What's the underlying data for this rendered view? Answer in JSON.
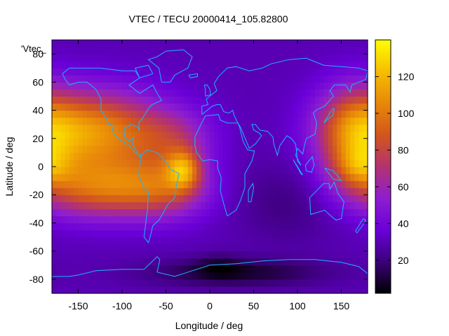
{
  "chart_data": {
    "type": "heatmap",
    "title": "VTEC / TECU 20000414_105.82800",
    "xlabel": "Longitude / deg",
    "ylabel": "Latitude / deg",
    "key_label": "'Vtec_",
    "xlim": [
      -180,
      180
    ],
    "ylim": [
      -90,
      90
    ],
    "x_ticks": [
      -150,
      -100,
      -50,
      0,
      50,
      100,
      150
    ],
    "y_ticks": [
      -80,
      -60,
      -40,
      -20,
      0,
      20,
      40,
      60,
      80
    ],
    "colorbar": {
      "range": [
        2,
        140
      ],
      "ticks": [
        20,
        40,
        60,
        80,
        100,
        120
      ],
      "palette": [
        "#000000",
        "#3c007a",
        "#6a00d8",
        "#8e1ed0",
        "#b43270",
        "#d2561c",
        "#e8880a",
        "#f6be00",
        "#ffff00"
      ]
    },
    "grid": false,
    "blobs": [
      {
        "lon": -130,
        "lat": 25,
        "sig_lon": 55,
        "sig_lat": 20,
        "value": 75
      },
      {
        "lon": -125,
        "lat": -15,
        "sig_lon": 55,
        "sig_lat": 15,
        "value": 60
      },
      {
        "lon": -50,
        "lat": -15,
        "sig_lon": 35,
        "sig_lat": 15,
        "value": 35
      },
      {
        "lon": -30,
        "lat": -2,
        "sig_lon": 14,
        "sig_lat": 10,
        "value": 55
      },
      {
        "lon": -40,
        "lat": 20,
        "sig_lon": 30,
        "sig_lat": 14,
        "value": 25
      },
      {
        "lon": 165,
        "lat": 25,
        "sig_lon": 30,
        "sig_lat": 22,
        "value": 55
      },
      {
        "lon": 170,
        "lat": 0,
        "sig_lon": 20,
        "sig_lat": 10,
        "value": 30
      },
      {
        "lon": 30,
        "lat": -75,
        "sig_lon": 70,
        "sig_lat": 7,
        "value": -22
      },
      {
        "lon": 10,
        "lat": -70,
        "sig_lon": 18,
        "sig_lat": 6,
        "value": -10
      },
      {
        "lon": 90,
        "lat": -25,
        "sig_lon": 40,
        "sig_lat": 20,
        "value": -10
      }
    ],
    "base_value": 30
  },
  "coastlines": [
    {
      "name": "north-america",
      "coords": [
        [
          -168,
          66
        ],
        [
          -160,
          70
        ],
        [
          -140,
          70
        ],
        [
          -125,
          70
        ],
        [
          -100,
          68
        ],
        [
          -85,
          68
        ],
        [
          -80,
          63
        ],
        [
          -92,
          58
        ],
        [
          -80,
          52
        ],
        [
          -65,
          58
        ],
        [
          -60,
          52
        ],
        [
          -55,
          47
        ],
        [
          -66,
          44
        ],
        [
          -70,
          41
        ],
        [
          -76,
          35
        ],
        [
          -81,
          31
        ],
        [
          -80,
          25
        ],
        [
          -82,
          28
        ],
        [
          -90,
          30
        ],
        [
          -97,
          27
        ],
        [
          -97,
          21
        ],
        [
          -92,
          18
        ],
        [
          -87,
          21
        ],
        [
          -88,
          16
        ],
        [
          -83,
          10
        ],
        [
          -78,
          8
        ],
        [
          -80,
          7
        ],
        [
          -85,
          10
        ],
        [
          -92,
          15
        ],
        [
          -105,
          20
        ],
        [
          -110,
          24
        ],
        [
          -112,
          30
        ],
        [
          -115,
          30
        ],
        [
          -118,
          34
        ],
        [
          -124,
          40
        ],
        [
          -124,
          48
        ],
        [
          -130,
          55
        ],
        [
          -140,
          60
        ],
        [
          -150,
          60
        ],
        [
          -160,
          58
        ],
        [
          -165,
          62
        ],
        [
          -168,
          66
        ]
      ]
    },
    {
      "name": "south-america",
      "coords": [
        [
          -78,
          8
        ],
        [
          -72,
          12
        ],
        [
          -60,
          10
        ],
        [
          -52,
          5
        ],
        [
          -45,
          -2
        ],
        [
          -35,
          -5
        ],
        [
          -38,
          -13
        ],
        [
          -40,
          -22
        ],
        [
          -48,
          -27
        ],
        [
          -55,
          -35
        ],
        [
          -58,
          -38
        ],
        [
          -65,
          -42
        ],
        [
          -68,
          -50
        ],
        [
          -70,
          -54
        ],
        [
          -75,
          -50
        ],
        [
          -73,
          -40
        ],
        [
          -71,
          -30
        ],
        [
          -70,
          -18
        ],
        [
          -76,
          -14
        ],
        [
          -81,
          -6
        ],
        [
          -80,
          0
        ],
        [
          -78,
          8
        ]
      ]
    },
    {
      "name": "greenland",
      "coords": [
        [
          -55,
          60
        ],
        [
          -45,
          60
        ],
        [
          -40,
          65
        ],
        [
          -25,
          70
        ],
        [
          -20,
          78
        ],
        [
          -30,
          83
        ],
        [
          -50,
          82
        ],
        [
          -60,
          78
        ],
        [
          -70,
          76
        ],
        [
          -58,
          70
        ],
        [
          -55,
          60
        ]
      ]
    },
    {
      "name": "africa",
      "coords": [
        [
          -17,
          21
        ],
        [
          -10,
          30
        ],
        [
          -5,
          36
        ],
        [
          10,
          37
        ],
        [
          12,
          33
        ],
        [
          20,
          31
        ],
        [
          32,
          31
        ],
        [
          34,
          28
        ],
        [
          38,
          18
        ],
        [
          43,
          12
        ],
        [
          51,
          11
        ],
        [
          48,
          4
        ],
        [
          40,
          -5
        ],
        [
          40,
          -15
        ],
        [
          35,
          -24
        ],
        [
          30,
          -31
        ],
        [
          20,
          -35
        ],
        [
          17,
          -29
        ],
        [
          12,
          -17
        ],
        [
          13,
          -8
        ],
        [
          9,
          -1
        ],
        [
          9,
          4
        ],
        [
          0,
          5
        ],
        [
          -8,
          4
        ],
        [
          -15,
          10
        ],
        [
          -17,
          15
        ],
        [
          -17,
          21
        ]
      ]
    },
    {
      "name": "eurasia",
      "coords": [
        [
          -9,
          37
        ],
        [
          -9,
          43
        ],
        [
          -2,
          44
        ],
        [
          -4,
          48
        ],
        [
          2,
          51
        ],
        [
          8,
          54
        ],
        [
          5,
          59
        ],
        [
          10,
          64
        ],
        [
          20,
          70
        ],
        [
          30,
          71
        ],
        [
          45,
          68
        ],
        [
          60,
          70
        ],
        [
          70,
          73
        ],
        [
          90,
          76
        ],
        [
          110,
          77
        ],
        [
          130,
          72
        ],
        [
          150,
          71
        ],
        [
          170,
          70
        ],
        [
          180,
          68
        ],
        [
          178,
          62
        ],
        [
          162,
          58
        ],
        [
          160,
          53
        ],
        [
          155,
          58
        ],
        [
          142,
          58
        ],
        [
          137,
          54
        ],
        [
          141,
          50
        ],
        [
          131,
          43
        ],
        [
          121,
          40
        ],
        [
          118,
          38
        ],
        [
          122,
          31
        ],
        [
          120,
          23
        ],
        [
          110,
          20
        ],
        [
          108,
          15
        ],
        [
          106,
          9
        ],
        [
          100,
          13
        ],
        [
          98,
          8
        ],
        [
          104,
          1
        ],
        [
          100,
          4
        ],
        [
          98,
          16
        ],
        [
          93,
          20
        ],
        [
          88,
          22
        ],
        [
          80,
          15
        ],
        [
          77,
          8
        ],
        [
          73,
          16
        ],
        [
          72,
          21
        ],
        [
          66,
          25
        ],
        [
          57,
          26
        ],
        [
          52,
          30
        ],
        [
          48,
          30
        ],
        [
          50,
          26
        ],
        [
          56,
          24
        ],
        [
          59,
          22
        ],
        [
          52,
          16
        ],
        [
          45,
          13
        ],
        [
          43,
          16
        ],
        [
          35,
          28
        ],
        [
          32,
          31
        ],
        [
          28,
          36
        ],
        [
          26,
          40
        ],
        [
          22,
          38
        ],
        [
          16,
          39
        ],
        [
          12,
          44
        ],
        [
          8,
          44
        ],
        [
          3,
          43
        ],
        [
          -9,
          37
        ]
      ]
    },
    {
      "name": "australia",
      "coords": [
        [
          114,
          -22
        ],
        [
          122,
          -17
        ],
        [
          130,
          -12
        ],
        [
          136,
          -12
        ],
        [
          137,
          -16
        ],
        [
          142,
          -11
        ],
        [
          146,
          -19
        ],
        [
          153,
          -25
        ],
        [
          150,
          -37
        ],
        [
          144,
          -38
        ],
        [
          138,
          -35
        ],
        [
          131,
          -31
        ],
        [
          115,
          -34
        ],
        [
          114,
          -22
        ]
      ]
    },
    {
      "name": "antarctica",
      "coords": [
        [
          -180,
          -84
        ],
        [
          -180,
          -78
        ],
        [
          -160,
          -78
        ],
        [
          -150,
          -77
        ],
        [
          -130,
          -74
        ],
        [
          -100,
          -73
        ],
        [
          -75,
          -73
        ],
        [
          -60,
          -64
        ],
        [
          -57,
          -66
        ],
        [
          -60,
          -75
        ],
        [
          -40,
          -78
        ],
        [
          -20,
          -74
        ],
        [
          0,
          -70
        ],
        [
          30,
          -69
        ],
        [
          60,
          -67
        ],
        [
          90,
          -66
        ],
        [
          120,
          -66
        ],
        [
          150,
          -68
        ],
        [
          170,
          -71
        ],
        [
          180,
          -76
        ]
      ]
    },
    {
      "name": "uk",
      "coords": [
        [
          -5,
          50
        ],
        [
          1,
          51
        ],
        [
          0,
          55
        ],
        [
          -3,
          58
        ],
        [
          -6,
          58
        ],
        [
          -5,
          54
        ],
        [
          -5,
          50
        ]
      ]
    },
    {
      "name": "madagascar",
      "coords": [
        [
          44,
          -25
        ],
        [
          47,
          -25
        ],
        [
          50,
          -15
        ],
        [
          49,
          -12
        ],
        [
          44,
          -17
        ],
        [
          44,
          -25
        ]
      ]
    },
    {
      "name": "japan",
      "coords": [
        [
          130,
          31
        ],
        [
          135,
          34
        ],
        [
          140,
          36
        ],
        [
          142,
          41
        ],
        [
          140,
          41
        ],
        [
          136,
          37
        ],
        [
          130,
          31
        ]
      ]
    },
    {
      "name": "new-zealand",
      "coords": [
        [
          166,
          -46
        ],
        [
          172,
          -40
        ],
        [
          175,
          -37
        ],
        [
          178,
          -38
        ],
        [
          174,
          -42
        ],
        [
          168,
          -47
        ],
        [
          166,
          -46
        ]
      ]
    },
    {
      "name": "new-guinea",
      "coords": [
        [
          131,
          -1
        ],
        [
          141,
          -3
        ],
        [
          150,
          -10
        ],
        [
          141,
          -9
        ],
        [
          131,
          -1
        ]
      ]
    },
    {
      "name": "borneo",
      "coords": [
        [
          109,
          1
        ],
        [
          117,
          7
        ],
        [
          119,
          1
        ],
        [
          116,
          -4
        ],
        [
          110,
          -3
        ],
        [
          109,
          1
        ]
      ]
    },
    {
      "name": "sumatra",
      "coords": [
        [
          95,
          5
        ],
        [
          106,
          -6
        ],
        [
          104,
          -5
        ],
        [
          95,
          5
        ]
      ]
    },
    {
      "name": "iceland",
      "coords": [
        [
          -24,
          65
        ],
        [
          -14,
          66
        ],
        [
          -14,
          64
        ],
        [
          -22,
          63
        ],
        [
          -24,
          65
        ]
      ]
    },
    {
      "name": "baffin",
      "coords": [
        [
          -80,
          63
        ],
        [
          -65,
          66
        ],
        [
          -70,
          72
        ],
        [
          -85,
          70
        ],
        [
          -80,
          63
        ]
      ]
    }
  ]
}
